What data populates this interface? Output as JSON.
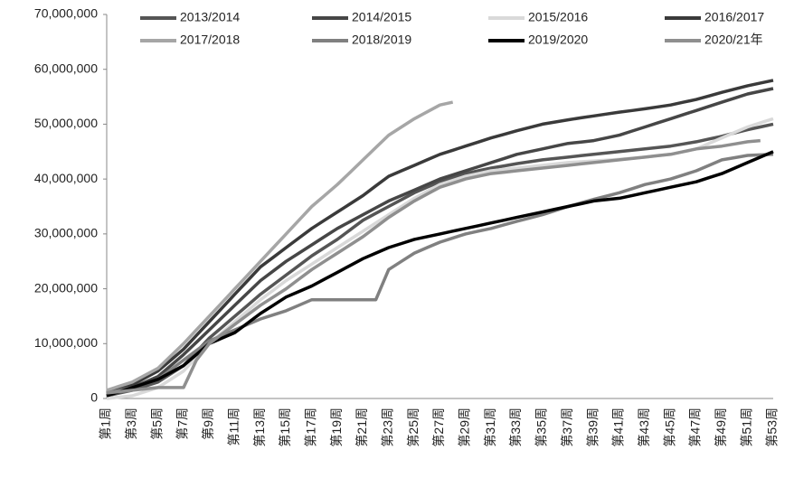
{
  "chart_data": {
    "type": "line",
    "categories": [
      "第1周",
      null,
      "第3周",
      null,
      "第5周",
      null,
      "第7周",
      null,
      "第9周",
      null,
      "第11周",
      null,
      "第13周",
      null,
      "第15周",
      null,
      "第17周",
      null,
      "第19周",
      null,
      "第21周",
      null,
      "第23周",
      null,
      "第25周",
      null,
      "第27周",
      null,
      "第29周",
      null,
      "第31周",
      null,
      "第33周",
      null,
      "第35周",
      null,
      "第37周",
      null,
      "第39周",
      null,
      "第41周",
      null,
      "第43周",
      null,
      "第45周",
      null,
      "第47周",
      null,
      "第49周",
      null,
      "第51周",
      null,
      "第53周"
    ],
    "ylim": [
      0,
      70000000
    ],
    "yticks": [
      0,
      {
        "value": 10000000,
        "label": "10,000,000"
      },
      {
        "value": 20000000,
        "label": "20,000,000"
      },
      {
        "value": 30000000,
        "label": "30,000,000"
      },
      {
        "value": 40000000,
        "label": "40,000,000"
      },
      {
        "value": 50000000,
        "label": "50,000,000"
      },
      {
        "value": 60000000,
        "label": "60,000,000"
      },
      {
        "value": 70000000,
        "label": "70,000,000"
      }
    ],
    "legend": "top",
    "series": [
      {
        "name": "2013/2014",
        "color": "#555555",
        "values": [
          500000,
          1000000,
          1500000,
          2250000,
          3000000,
          4500000,
          6000000,
          8500000,
          11000000,
          13000000,
          15000000,
          17000000,
          19000000,
          20750000,
          22500000,
          24250000,
          26000000,
          27500000,
          29000000,
          30750000,
          32500000,
          33750000,
          35000000,
          36250000,
          37500000,
          38500000,
          39500000,
          40250000,
          41000000,
          41500000,
          42000000,
          42400000,
          42800000,
          43150000,
          43500000,
          43750000,
          44000000,
          44250000,
          44500000,
          44750000,
          45000000,
          45250000,
          45500000,
          45750000,
          46000000,
          46400000,
          46800000,
          47300000,
          47800000,
          48400000,
          49000000,
          49500000,
          50000000
        ]
      },
      {
        "name": "2014/2015",
        "color": "#464646",
        "values": [
          1000000,
          1500000,
          2000000,
          3000000,
          4000000,
          6000000,
          8000000,
          10250000,
          12500000,
          14750000,
          17000000,
          19250000,
          21500000,
          23250000,
          25000000,
          26500000,
          28000000,
          29500000,
          31000000,
          32250000,
          33500000,
          34750000,
          36000000,
          37000000,
          38000000,
          39000000,
          40000000,
          40750000,
          41500000,
          42250000,
          43000000,
          43750000,
          44500000,
          45000000,
          45500000,
          46000000,
          46500000,
          46750000,
          47000000,
          47500000,
          48000000,
          48750000,
          49500000,
          50250000,
          51000000,
          51750000,
          52500000,
          53250000,
          54000000,
          54750000,
          55500000,
          56000000,
          56500000
        ]
      },
      {
        "name": "2015/2016",
        "color": "#d9d9d9",
        "values": [
          0,
          250000,
          500000,
          1250000,
          2000000,
          3500000,
          5000000,
          7500000,
          10000000,
          12000000,
          14000000,
          16000000,
          18000000,
          19750000,
          21500000,
          23000000,
          24500000,
          26000000,
          27500000,
          29000000,
          30500000,
          32000000,
          33500000,
          35000000,
          36500000,
          37750000,
          39000000,
          39750000,
          40500000,
          41000000,
          41500000,
          41750000,
          42000000,
          42250000,
          42500000,
          42750000,
          43000000,
          43150000,
          43300000,
          43450000,
          43600000,
          43800000,
          44000000,
          44250000,
          44500000,
          45000000,
          45500000,
          46500000,
          47500000,
          48500000,
          49500000,
          50250000,
          51000000
        ]
      },
      {
        "name": "2016/2017",
        "color": "#3a3a3a",
        "values": [
          1000000,
          1750000,
          2500000,
          3750000,
          5000000,
          7000000,
          9000000,
          11500000,
          14000000,
          16500000,
          19000000,
          21500000,
          24000000,
          25750000,
          27500000,
          29250000,
          31000000,
          32500000,
          34000000,
          35500000,
          37000000,
          38750000,
          40500000,
          41500000,
          42500000,
          43500000,
          44500000,
          45250000,
          46000000,
          46750000,
          47500000,
          48150000,
          48800000,
          49400000,
          50000000,
          50400000,
          50800000,
          51150000,
          51500000,
          51850000,
          52200000,
          52500000,
          52800000,
          53150000,
          53500000,
          54000000,
          54500000,
          55150000,
          55800000,
          56400000,
          57000000,
          57500000,
          58000000
        ]
      },
      {
        "name": "2017/2018",
        "color": "#a6a6a6",
        "values": [
          1500000,
          2250000,
          3000000,
          4250000,
          5500000,
          7750000,
          10000000,
          12500000,
          15000000,
          17500000,
          20000000,
          22500000,
          25000000,
          27500000,
          30000000,
          32500000,
          35000000,
          37000000,
          39000000,
          41250000,
          43500000,
          45750000,
          48000000,
          49500000,
          51000000,
          52250000,
          53500000,
          54000000,
          null,
          null,
          null,
          null,
          null,
          null,
          null,
          null,
          null,
          null,
          null,
          null,
          null,
          null,
          null,
          null,
          null,
          null,
          null,
          null,
          null,
          null,
          null,
          null,
          null
        ]
      },
      {
        "name": "2018/2019",
        "color": "#808080",
        "values": [
          1000000,
          1500000,
          2000000,
          2750000,
          3500000,
          5250000,
          7000000,
          8750000,
          10500000,
          11500000,
          12500000,
          13500000,
          14500000,
          15250000,
          16000000,
          17000000,
          18000000,
          18000000,
          18000000,
          18000000,
          18000000,
          18000000,
          23500000,
          25000000,
          26500000,
          27500000,
          28500000,
          29250000,
          30000000,
          30500000,
          31000000,
          31650000,
          32300000,
          32900000,
          33500000,
          34250000,
          35000000,
          35650000,
          36300000,
          36900000,
          37500000,
          38250000,
          39000000,
          39500000,
          40000000,
          40750000,
          41500000,
          42500000,
          43500000,
          43900000,
          44300000,
          44400000,
          44500000
        ]
      },
      {
        "name": "2019/2020",
        "color": "#000000",
        "values": [
          500000,
          1250000,
          2000000,
          2750000,
          3500000,
          4750000,
          6000000,
          8000000,
          10000000,
          11000000,
          12000000,
          13750000,
          15500000,
          17000000,
          18500000,
          19500000,
          20500000,
          21750000,
          23000000,
          24250000,
          25500000,
          26500000,
          27500000,
          28250000,
          29000000,
          29500000,
          30000000,
          30500000,
          31000000,
          31500000,
          32000000,
          32500000,
          33000000,
          33500000,
          34000000,
          34500000,
          35000000,
          35500000,
          36000000,
          36250000,
          36500000,
          37000000,
          37500000,
          38000000,
          38500000,
          39000000,
          39500000,
          40250000,
          41000000,
          42000000,
          43000000,
          44000000,
          45000000
        ]
      },
      {
        "name": "2020/21年",
        "color": "#8f8f8f",
        "values": [
          1000000,
          1250000,
          1500000,
          1750000,
          2000000,
          2000000,
          2000000,
          7000000,
          10000000,
          11750000,
          13500000,
          15250000,
          17000000,
          18500000,
          20000000,
          21750000,
          23500000,
          25000000,
          26500000,
          28000000,
          29500000,
          31250000,
          33000000,
          34500000,
          36000000,
          37250000,
          38500000,
          39250000,
          40000000,
          40500000,
          41000000,
          41250000,
          41500000,
          41750000,
          42000000,
          42250000,
          42500000,
          42750000,
          43000000,
          43250000,
          43500000,
          43750000,
          44000000,
          44250000,
          44500000,
          45000000,
          45500000,
          45750000,
          46000000,
          46400000,
          46800000,
          47000000,
          null
        ]
      }
    ]
  }
}
